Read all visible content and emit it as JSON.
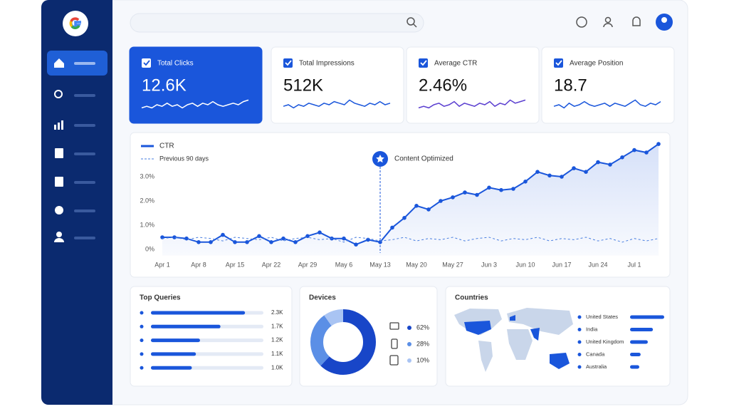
{
  "kpis": [
    {
      "label": "Total Clicks",
      "value": "12.6K",
      "active": true,
      "color": "#ffffff",
      "sparkline": {
        "ylim": [
          0,
          10
        ],
        "values": [
          3,
          4,
          3,
          5,
          4,
          6,
          4,
          5,
          3,
          5,
          6,
          4,
          6,
          5,
          7,
          5,
          4,
          5,
          6,
          5,
          7,
          8
        ]
      }
    },
    {
      "label": "Total Impressions",
      "value": "512K",
      "active": false,
      "color": "#1a56db",
      "sparkline": {
        "ylim": [
          0,
          10
        ],
        "values": [
          4,
          5,
          3,
          5,
          4,
          6,
          5,
          4,
          6,
          5,
          7,
          6,
          5,
          8,
          6,
          5,
          4,
          6,
          5,
          7,
          5,
          6
        ]
      }
    },
    {
      "label": "Average CTR",
      "value": "2.46%",
      "active": false,
      "color": "#5b3fd0",
      "sparkline": {
        "ylim": [
          0,
          10
        ],
        "values": [
          3,
          4,
          3,
          5,
          6,
          4,
          5,
          7,
          4,
          6,
          5,
          4,
          6,
          5,
          7,
          4,
          6,
          5,
          8,
          6,
          7,
          8
        ]
      }
    },
    {
      "label": "Average Position",
      "value": "18.7",
      "active": false,
      "color": "#1a56db",
      "sparkline": {
        "ylim": [
          0,
          10
        ],
        "values": [
          4,
          5,
          3,
          6,
          4,
          5,
          7,
          5,
          4,
          5,
          6,
          4,
          6,
          5,
          4,
          6,
          8,
          5,
          4,
          6,
          5,
          7
        ]
      }
    }
  ],
  "main_chart": {
    "type": "line",
    "categories": [
      "Apr 1",
      null,
      null,
      "Apr 8",
      null,
      null,
      "Apr 15",
      null,
      null,
      "Apr 22",
      null,
      null,
      "Apr 29",
      null,
      null,
      "May 6",
      null,
      null,
      "May 13",
      null,
      null,
      "May 20",
      null,
      null,
      "May 27",
      null,
      null,
      "Jun 3",
      null,
      null,
      "Jun 10",
      null,
      null,
      "Jun 17",
      null,
      null,
      "Jun 24",
      null,
      null,
      "Jul 1",
      null,
      null
    ],
    "series": [
      {
        "name": "CTR",
        "color": "#1a56db",
        "values": [
          0.5,
          0.5,
          0.45,
          0.3,
          0.3,
          0.6,
          0.3,
          0.3,
          0.55,
          0.3,
          0.45,
          0.3,
          0.55,
          0.7,
          0.45,
          0.45,
          0.2,
          0.4,
          0.3,
          0.9,
          1.3,
          1.8,
          1.65,
          2.0,
          2.15,
          2.35,
          2.25,
          2.55,
          2.45,
          2.5,
          2.8,
          3.2,
          3.05,
          3.0,
          3.35,
          3.2,
          3.6,
          3.5,
          3.8,
          4.1,
          4.0,
          4.35
        ]
      },
      {
        "name": "Previous 90 days",
        "color": "#4a7fe0",
        "dashed": true,
        "values": [
          0.45,
          0.5,
          0.4,
          0.5,
          0.45,
          0.35,
          0.5,
          0.45,
          0.4,
          0.5,
          0.35,
          0.45,
          0.5,
          0.4,
          0.45,
          0.3,
          0.5,
          0.45,
          0.35,
          0.4,
          0.5,
          0.35,
          0.45,
          0.4,
          0.5,
          0.35,
          0.45,
          0.5,
          0.35,
          0.45,
          0.4,
          0.5,
          0.35,
          0.45,
          0.4,
          0.5,
          0.35,
          0.45,
          0.3,
          0.45,
          0.35,
          0.45
        ]
      }
    ],
    "ylim": [
      -0.25,
      4.5
    ],
    "yticks": [
      {
        "value": 0,
        "label": "0%"
      },
      {
        "value": 1,
        "label": "1.0%"
      },
      {
        "value": 2,
        "label": "2.0%"
      },
      {
        "value": 3,
        "label": "3.0%"
      }
    ],
    "annotation": {
      "label": "Content Optimized",
      "x": "May 13"
    }
  },
  "top_queries": {
    "title": "Top Queries",
    "type": "bar",
    "values": [
      2300,
      1700,
      1200,
      1100,
      1000
    ],
    "value_labels": [
      "2.3K",
      "1.7K",
      "1.2K",
      "1.1K",
      "1.0K"
    ],
    "xlim": [
      0,
      2750
    ],
    "color": "#1a56db"
  },
  "devices": {
    "title": "Devices",
    "type": "pie",
    "values": [
      62,
      28,
      10
    ],
    "value_labels": [
      "62%",
      "28%",
      "10%"
    ],
    "colors": [
      "#1846c8",
      "#5b8fe6",
      "#a9c4f3"
    ]
  },
  "countries": {
    "title": "Countries",
    "type": "bar",
    "categories": [
      "United States",
      "India",
      "United Kingdom",
      "Canada",
      "Australia"
    ],
    "values": [
      100,
      67,
      52,
      31,
      27
    ],
    "xlim": [
      0,
      100
    ],
    "color": "#1a56db"
  }
}
